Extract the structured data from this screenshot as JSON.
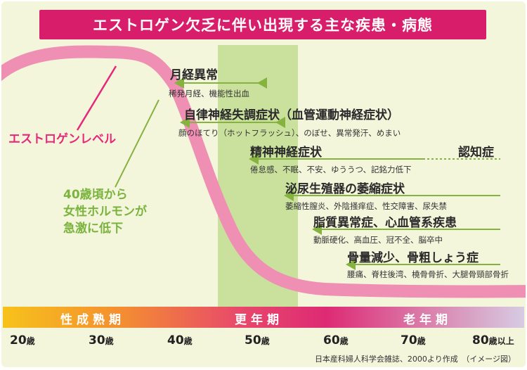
{
  "title": "エストロゲン欠乏に伴い出現する主な疾患・病態",
  "curve_label": "エストロゲンレベル",
  "decline_note": [
    "40歳頃から",
    "女性ホルモンが",
    "急激に低下"
  ],
  "conditions": [
    {
      "name": "月経異常",
      "detail": "稀発月経、機能性出血"
    },
    {
      "name": "自律神経失調症状（血管運動神経症状）",
      "detail": "顔のほてり（ホットフラッシュ）、のぼせ、異常発汗、めまい"
    },
    {
      "name": "精神神経症状",
      "detail": "倦怠感、不眠、不安、ゆううつ、記銘力低下",
      "extra": "認知症"
    },
    {
      "name": "泌尿生殖器の萎縮症状",
      "detail": "萎縮性膣炎、外陰掻痒症、性交障害、尿失禁"
    },
    {
      "name": "脂質異常症、心血管系疾患",
      "detail": "動脈硬化、高血圧、冠不全、脳卒中"
    },
    {
      "name": "骨量減少、骨粗しょう症",
      "detail": "腰痛、脊柱後湾、橈骨骨折、大腿骨頸部骨折"
    }
  ],
  "phases": [
    "性成熟期",
    "更年期",
    "老年期"
  ],
  "ages": [
    "20",
    "30",
    "40",
    "50",
    "60",
    "70",
    "80"
  ],
  "age_unit": "歳",
  "age_last_suffix": "以上",
  "source": "日本産科婦人科学会雑誌、2000より作成　（イメージ図）",
  "colors": {
    "banner": "#d81e6a",
    "curve": "#ef8fb3",
    "arrow": "#86b23f",
    "menopause_band": "#c9e19c",
    "background": "#f4f6dc"
  }
}
